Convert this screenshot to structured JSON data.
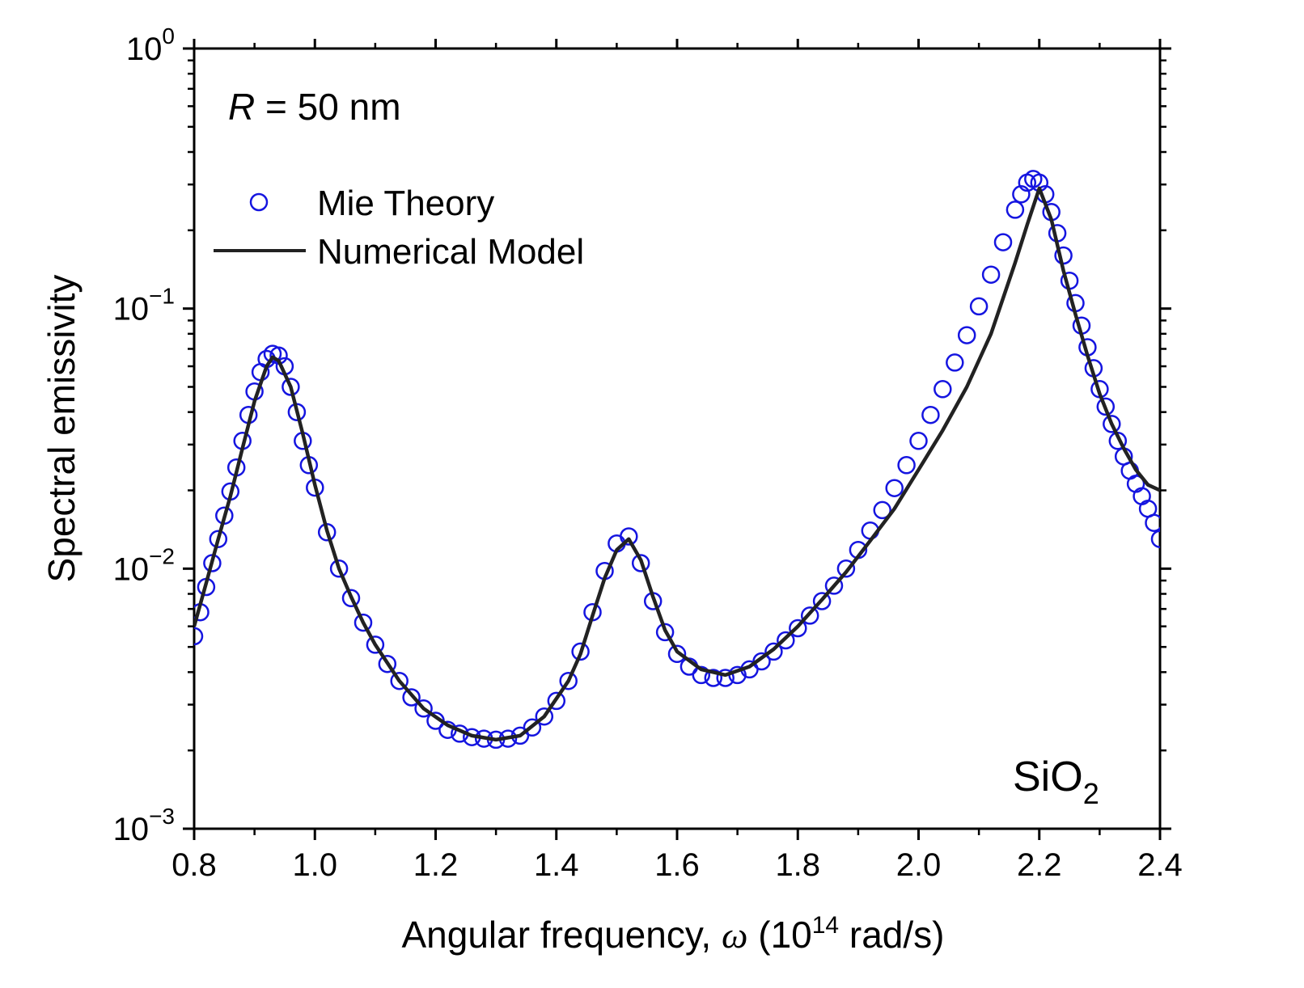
{
  "chart_data": {
    "type": "scatter",
    "xlabel": {
      "prefix": "Angular frequency, ",
      "symbol": "ω",
      "unit_before": " (10",
      "unit_exp": "14",
      "unit_after": " rad/s)"
    },
    "ylabel": "Spectral emissivity",
    "xlim": [
      0.8,
      2.4
    ],
    "ylim": [
      0.001,
      1
    ],
    "yscale": "log",
    "grid": false,
    "legend_position": "top-left",
    "x_ticks": [
      "0.8",
      "1.0",
      "1.2",
      "1.4",
      "1.6",
      "1.8",
      "2.0",
      "2.2",
      "2.4"
    ],
    "x_tick_values": [
      0.8,
      1.0,
      1.2,
      1.4,
      1.6,
      1.8,
      2.0,
      2.2,
      2.4
    ],
    "y_ticks": [
      {
        "value": 1,
        "base": "10",
        "exp": "0"
      },
      {
        "value": 0.1,
        "base": "10",
        "exp": "−1"
      },
      {
        "value": 0.01,
        "base": "10",
        "exp": "−2"
      },
      {
        "value": 0.001,
        "base": "10",
        "exp": "−3"
      }
    ],
    "annotations": {
      "radius": {
        "symbol": "R",
        "text": " = 50 nm"
      },
      "material": {
        "base": "SiO",
        "sub": "2"
      }
    },
    "series": [
      {
        "name": "Mie Theory",
        "style": "open-circle",
        "color": "#1515e0",
        "x": [
          0.8,
          0.81,
          0.82,
          0.83,
          0.84,
          0.85,
          0.86,
          0.87,
          0.88,
          0.89,
          0.9,
          0.91,
          0.92,
          0.93,
          0.94,
          0.95,
          0.96,
          0.97,
          0.98,
          0.99,
          1.0,
          1.02,
          1.04,
          1.06,
          1.08,
          1.1,
          1.12,
          1.14,
          1.16,
          1.18,
          1.2,
          1.22,
          1.24,
          1.26,
          1.28,
          1.3,
          1.32,
          1.34,
          1.36,
          1.38,
          1.4,
          1.42,
          1.44,
          1.46,
          1.48,
          1.5,
          1.52,
          1.54,
          1.56,
          1.58,
          1.6,
          1.62,
          1.64,
          1.66,
          1.68,
          1.7,
          1.72,
          1.74,
          1.76,
          1.78,
          1.8,
          1.82,
          1.84,
          1.86,
          1.88,
          1.9,
          1.92,
          1.94,
          1.96,
          1.98,
          2.0,
          2.02,
          2.04,
          2.06,
          2.08,
          2.1,
          2.12,
          2.14,
          2.16,
          2.17,
          2.18,
          2.19,
          2.2,
          2.21,
          2.22,
          2.23,
          2.24,
          2.25,
          2.26,
          2.27,
          2.28,
          2.29,
          2.3,
          2.31,
          2.32,
          2.33,
          2.34,
          2.35,
          2.36,
          2.37,
          2.38,
          2.39,
          2.4
        ],
        "y": [
          0.0055,
          0.0068,
          0.0085,
          0.0105,
          0.013,
          0.016,
          0.0198,
          0.0245,
          0.031,
          0.039,
          0.048,
          0.057,
          0.064,
          0.067,
          0.066,
          0.06,
          0.05,
          0.04,
          0.031,
          0.025,
          0.0205,
          0.0138,
          0.01,
          0.0077,
          0.0062,
          0.0051,
          0.0043,
          0.0037,
          0.0032,
          0.0029,
          0.0026,
          0.0024,
          0.00232,
          0.00225,
          0.00222,
          0.0022,
          0.00222,
          0.00228,
          0.00245,
          0.0027,
          0.0031,
          0.0037,
          0.0048,
          0.0068,
          0.0098,
          0.0125,
          0.0133,
          0.0105,
          0.0075,
          0.0057,
          0.0047,
          0.0042,
          0.0039,
          0.0038,
          0.0038,
          0.0039,
          0.0041,
          0.0044,
          0.0048,
          0.0053,
          0.0059,
          0.0066,
          0.0075,
          0.0086,
          0.01,
          0.0118,
          0.014,
          0.0168,
          0.0204,
          0.025,
          0.031,
          0.039,
          0.049,
          0.062,
          0.079,
          0.102,
          0.135,
          0.18,
          0.24,
          0.275,
          0.305,
          0.315,
          0.305,
          0.275,
          0.235,
          0.195,
          0.16,
          0.128,
          0.105,
          0.086,
          0.071,
          0.059,
          0.049,
          0.042,
          0.036,
          0.031,
          0.027,
          0.0238,
          0.0212,
          0.019,
          0.017,
          0.015,
          0.013
        ]
      },
      {
        "name": "Numerical Model",
        "style": "line",
        "color": "#222222",
        "x": [
          0.8,
          0.82,
          0.84,
          0.86,
          0.88,
          0.9,
          0.92,
          0.93,
          0.94,
          0.96,
          0.98,
          1.0,
          1.02,
          1.04,
          1.06,
          1.08,
          1.1,
          1.14,
          1.18,
          1.22,
          1.26,
          1.3,
          1.34,
          1.38,
          1.42,
          1.44,
          1.46,
          1.48,
          1.5,
          1.52,
          1.54,
          1.56,
          1.58,
          1.6,
          1.64,
          1.68,
          1.72,
          1.76,
          1.8,
          1.84,
          1.88,
          1.92,
          1.96,
          2.0,
          2.04,
          2.08,
          2.12,
          2.16,
          2.18,
          2.2,
          2.22,
          2.24,
          2.26,
          2.28,
          2.3,
          2.32,
          2.34,
          2.36,
          2.38,
          2.4
        ],
        "y": [
          0.006,
          0.0088,
          0.013,
          0.019,
          0.029,
          0.044,
          0.06,
          0.065,
          0.063,
          0.05,
          0.033,
          0.021,
          0.014,
          0.01,
          0.0078,
          0.0062,
          0.0051,
          0.0037,
          0.0029,
          0.0025,
          0.00228,
          0.0022,
          0.00228,
          0.0027,
          0.0037,
          0.0047,
          0.0066,
          0.0092,
          0.0118,
          0.013,
          0.0108,
          0.0078,
          0.0058,
          0.0048,
          0.0041,
          0.0039,
          0.0042,
          0.0049,
          0.006,
          0.0076,
          0.0097,
          0.0128,
          0.017,
          0.024,
          0.034,
          0.05,
          0.08,
          0.15,
          0.21,
          0.29,
          0.22,
          0.14,
          0.095,
          0.066,
          0.047,
          0.036,
          0.029,
          0.024,
          0.021,
          0.02
        ]
      }
    ]
  }
}
